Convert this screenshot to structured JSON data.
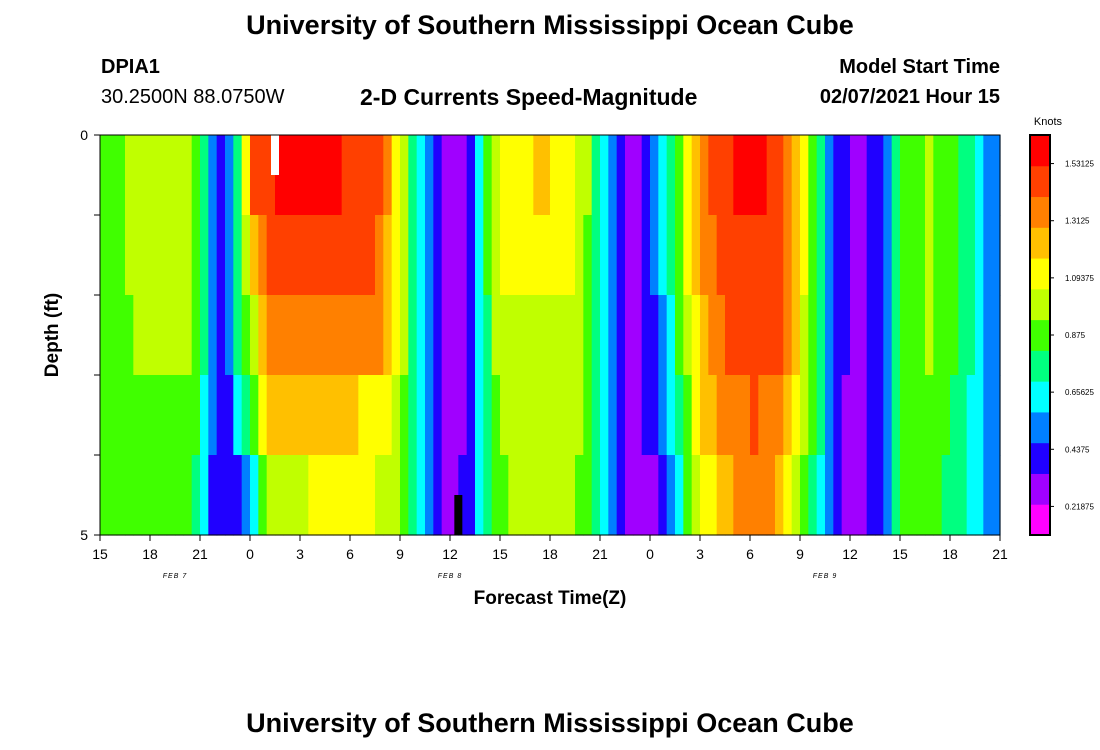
{
  "header": {
    "title": "University of Southern Mississippi Ocean Cube",
    "station_id": "DPIA1",
    "coordinates": "30.2500N 88.0750W",
    "plot_title": "2-D Currents Speed-Magnitude",
    "model_start_label": "Model Start Time",
    "model_start_value": "02/07/2021 Hour 15"
  },
  "footer": {
    "title": "University of Southern Mississippi Ocean Cube"
  },
  "chart_data": {
    "type": "heatmap",
    "title": "2-D Currents Speed-Magnitude",
    "xlabel": "Forecast Time(Z)",
    "ylabel": "Depth (ft)",
    "x_tick_labels": [
      "15",
      "18",
      "21",
      "0",
      "3",
      "6",
      "9",
      "12",
      "15",
      "18",
      "21",
      "0",
      "3",
      "6",
      "9",
      "12",
      "15",
      "18",
      "21"
    ],
    "x_range_hours": [
      0,
      54
    ],
    "date_labels": [
      {
        "text": "FEB 7",
        "hour": 4.5
      },
      {
        "text": "FEB 8",
        "hour": 21
      },
      {
        "text": "FEB 9",
        "hour": 43.5
      }
    ],
    "y_tick_labels": [
      "0",
      "5"
    ],
    "y_range_ft": [
      0,
      5
    ],
    "depth_levels_ft": [
      0.5,
      1.5,
      2.5,
      3.5,
      4.5
    ],
    "colorbar": {
      "units": "Knots",
      "min": 0.109375,
      "max": 1.640625,
      "labels": [
        "1.53125",
        "1.3125",
        "1.09375",
        "0.875",
        "0.65625",
        "0.4375",
        "0.21875"
      ],
      "colors": [
        "#ff00ff",
        "#a000ff",
        "#2000ff",
        "#0080ff",
        "#00ffff",
        "#00ff80",
        "#40ff00",
        "#c0ff00",
        "#ffff00",
        "#ffc000",
        "#ff8000",
        "#ff4000",
        "#ff0000"
      ]
    },
    "markers": [
      {
        "label": "current-time-marker",
        "hour": 10.5,
        "depth_ft": [
          0,
          0.5
        ],
        "color": "#ffffff"
      },
      {
        "label": "tide-marker",
        "hour": 21.5,
        "depth_ft": [
          4.5,
          5
        ],
        "color": "#000000"
      }
    ],
    "speed_profiles_knots": [
      {
        "hour": 0,
        "speeds": [
          0.85,
          0.85,
          0.83,
          0.82,
          0.82
        ]
      },
      {
        "hour": 1.5,
        "speeds": [
          0.95,
          0.95,
          0.92,
          0.9,
          0.87
        ]
      },
      {
        "hour": 3,
        "speeds": [
          1.0,
          0.99,
          0.96,
          0.93,
          0.88
        ]
      },
      {
        "hour": 5.5,
        "speeds": [
          0.98,
          0.97,
          0.95,
          0.92,
          0.86
        ]
      },
      {
        "hour": 6.2,
        "speeds": [
          0.75,
          0.73,
          0.72,
          0.7,
          0.66
        ]
      },
      {
        "hour": 6.8,
        "speeds": [
          0.55,
          0.52,
          0.5,
          0.45,
          0.42
        ]
      },
      {
        "hour": 7.5,
        "speeds": [
          0.4,
          0.4,
          0.4,
          0.38,
          0.35
        ]
      },
      {
        "hour": 8.5,
        "speeds": [
          0.95,
          0.92,
          0.85,
          0.7,
          0.45
        ]
      },
      {
        "hour": 9.3,
        "speeds": [
          1.45,
          1.2,
          1.05,
          0.9,
          0.65
        ]
      },
      {
        "hour": 10,
        "speeds": [
          1.5,
          1.45,
          1.4,
          1.22,
          0.95
        ]
      },
      {
        "hour": 12.5,
        "speeds": [
          1.58,
          1.48,
          1.4,
          1.25,
          1.05
        ]
      },
      {
        "hour": 15,
        "speeds": [
          1.5,
          1.45,
          1.4,
          1.18,
          1.1
        ]
      },
      {
        "hour": 17,
        "speeds": [
          1.45,
          1.38,
          1.3,
          1.1,
          1.03
        ]
      },
      {
        "hour": 17.5,
        "speeds": [
          1.2,
          1.15,
          1.12,
          1.05,
          1.0
        ]
      },
      {
        "hour": 18,
        "speeds": [
          1.05,
          1.05,
          1.02,
          0.98,
          0.92
        ]
      },
      {
        "hour": 18.8,
        "speeds": [
          0.8,
          0.8,
          0.8,
          0.78,
          0.75
        ]
      },
      {
        "hour": 19.5,
        "speeds": [
          0.55,
          0.55,
          0.55,
          0.55,
          0.52
        ]
      },
      {
        "hour": 20.5,
        "speeds": [
          0.3,
          0.3,
          0.3,
          0.3,
          0.3
        ]
      },
      {
        "hour": 22,
        "speeds": [
          0.35,
          0.35,
          0.35,
          0.35,
          0.36
        ]
      },
      {
        "hour": 22.8,
        "speeds": [
          0.6,
          0.6,
          0.6,
          0.6,
          0.6
        ]
      },
      {
        "hour": 23.5,
        "speeds": [
          0.95,
          0.95,
          0.92,
          0.9,
          0.88
        ]
      },
      {
        "hour": 24.5,
        "speeds": [
          1.15,
          1.1,
          1.05,
          1.0,
          0.95
        ]
      },
      {
        "hour": 27,
        "speeds": [
          1.18,
          1.12,
          1.05,
          1.0,
          0.95
        ]
      },
      {
        "hour": 28.5,
        "speeds": [
          1.1,
          1.05,
          1.0,
          0.98,
          0.95
        ]
      },
      {
        "hour": 29.5,
        "speeds": [
          0.9,
          0.88,
          0.88,
          0.86,
          0.82
        ]
      },
      {
        "hour": 30.5,
        "speeds": [
          0.55,
          0.55,
          0.55,
          0.55,
          0.55
        ]
      },
      {
        "hour": 32,
        "speeds": [
          0.3,
          0.3,
          0.3,
          0.3,
          0.22
        ]
      },
      {
        "hour": 33.2,
        "speeds": [
          0.45,
          0.45,
          0.45,
          0.42,
          0.3
        ]
      },
      {
        "hour": 34.5,
        "speeds": [
          0.85,
          0.85,
          0.75,
          0.7,
          0.6
        ]
      },
      {
        "hour": 36,
        "speeds": [
          1.35,
          1.3,
          1.25,
          1.15,
          1.05
        ]
      },
      {
        "hour": 37.5,
        "speeds": [
          1.5,
          1.45,
          1.4,
          1.35,
          1.25
        ]
      },
      {
        "hour": 39.5,
        "speeds": [
          1.58,
          1.52,
          1.48,
          1.42,
          1.4
        ]
      },
      {
        "hour": 41,
        "speeds": [
          1.45,
          1.42,
          1.4,
          1.3,
          1.2
        ]
      },
      {
        "hour": 42,
        "speeds": [
          1.15,
          1.12,
          1.1,
          1.02,
          0.95
        ]
      },
      {
        "hour": 43,
        "speeds": [
          0.85,
          0.85,
          0.85,
          0.8,
          0.75
        ]
      },
      {
        "hour": 44,
        "speeds": [
          0.45,
          0.45,
          0.45,
          0.42,
          0.4
        ]
      },
      {
        "hour": 45.5,
        "speeds": [
          0.25,
          0.25,
          0.25,
          0.25,
          0.25
        ]
      },
      {
        "hour": 47,
        "speeds": [
          0.45,
          0.45,
          0.45,
          0.45,
          0.45
        ]
      },
      {
        "hour": 48,
        "speeds": [
          0.9,
          0.9,
          0.9,
          0.9,
          0.85
        ]
      },
      {
        "hour": 50,
        "speeds": [
          0.95,
          0.95,
          0.95,
          0.92,
          0.88
        ]
      },
      {
        "hour": 52,
        "speeds": [
          0.75,
          0.75,
          0.75,
          0.72,
          0.7
        ]
      },
      {
        "hour": 53,
        "speeds": [
          0.55,
          0.55,
          0.55,
          0.55,
          0.55
        ]
      },
      {
        "hour": 54,
        "speeds": [
          0.5,
          0.5,
          0.5,
          0.5,
          0.5
        ]
      }
    ]
  }
}
